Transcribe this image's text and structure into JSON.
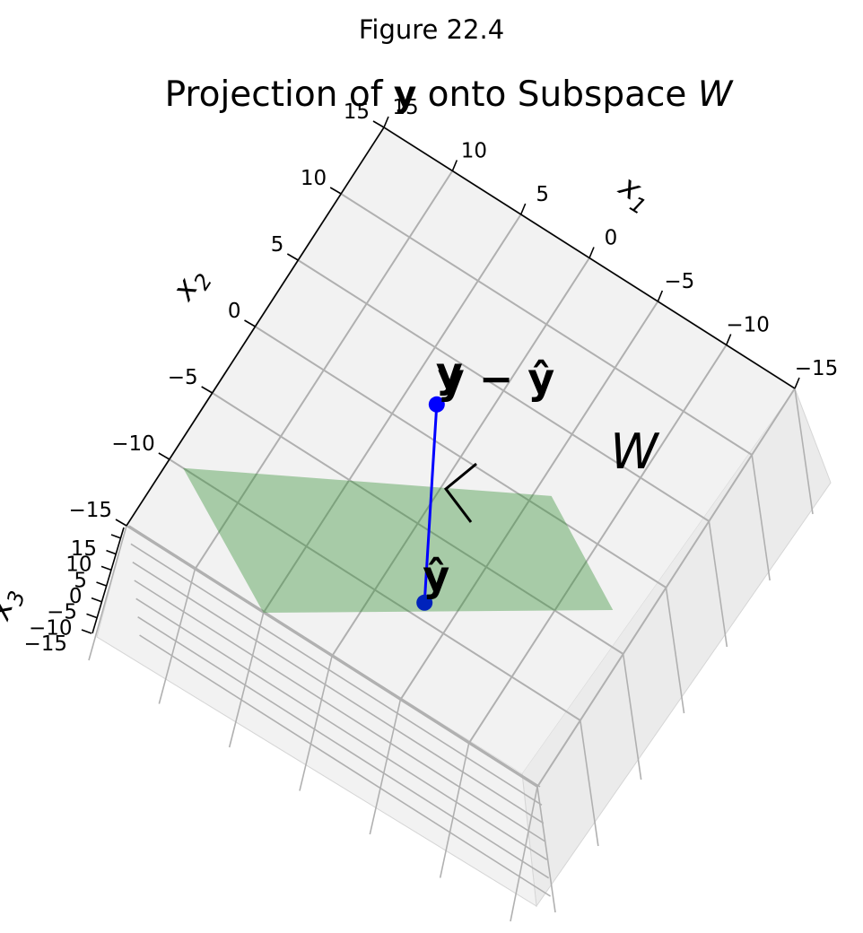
{
  "figure_label": "Figure 22.4",
  "chart_data": {
    "type": "scatter",
    "title": "Projection of y onto Subspace W",
    "title_parts": {
      "prefix": "Projection of ",
      "bold": "y",
      "middle": " onto Subspace ",
      "italic": "W"
    },
    "xlabel": "x",
    "xlabel_sub": "1",
    "ylabel": "x",
    "ylabel_sub": "2",
    "zlabel": "x",
    "zlabel_sub": "3",
    "xlim": [
      -15,
      15
    ],
    "ylim": [
      -15,
      15
    ],
    "zlim": [
      -15,
      15
    ],
    "x_ticks": [
      15,
      10,
      5,
      0,
      -5,
      -10,
      -15
    ],
    "x_tick_labels": [
      "15",
      "10",
      "5",
      "0",
      "−5",
      "−10",
      "−15"
    ],
    "y_ticks": [
      15,
      10,
      5,
      0,
      -5,
      -10,
      -15
    ],
    "y_tick_labels": [
      "15",
      "10",
      "5",
      "0",
      "−5",
      "−10",
      "−15"
    ],
    "z_ticks": [
      15,
      10,
      5,
      0,
      -5,
      -10,
      -15
    ],
    "z_tick_labels": [
      "15",
      "10",
      "5",
      "0",
      "−5",
      "−10",
      "−15"
    ],
    "grid": true,
    "points": [
      {
        "label": "y",
        "x": 3,
        "y": 2,
        "z": 0
      },
      {
        "label": "ŷ",
        "x": -3,
        "y": -9,
        "z": 0
      }
    ],
    "residual_label": "y − ŷ",
    "plane_label": "W",
    "plane_corners": [
      [
        -6,
        1
      ],
      [
        -13,
        -3
      ],
      [
        5,
        -15
      ],
      [
        14,
        -10
      ]
    ],
    "colors": {
      "point": "#0000ff",
      "residual_line": "#0000ff",
      "plane": "#2e8b2e",
      "right_angle": "#000000",
      "pane": "#f2f2f2",
      "grid": "#b0b0b0"
    }
  }
}
